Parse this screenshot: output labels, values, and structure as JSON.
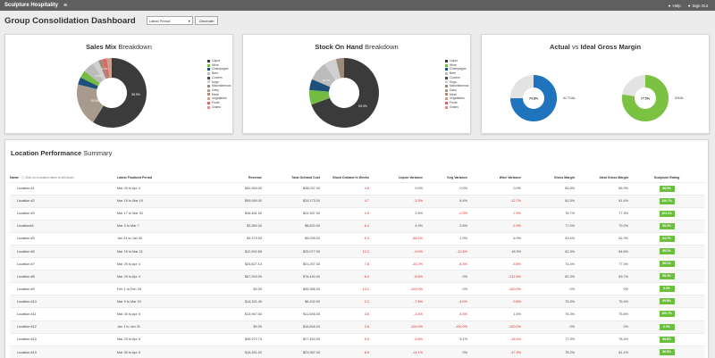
{
  "app": {
    "title": "Sculpture Hospitality",
    "help": "Help",
    "signout": "Sign Out"
  },
  "page": {
    "title": "Group Consolidation Dashboard",
    "period_select": "Latest Period",
    "generate_label": "Generate"
  },
  "sales_mix": {
    "title_bold": "Sales Mix",
    "title_rest": " Breakdown",
    "legend": [
      "Liquor",
      "Wine",
      "Champagne",
      "Beer",
      "Coolers",
      "Kegs",
      "Miscellaneous",
      "Dairy",
      "Meat",
      "Vegetables",
      "Fruits",
      "Grains"
    ],
    "colors": [
      "#3b3b3b",
      "#74bd42",
      "#1d4f7a",
      "#bcbcbc",
      "#4a4a4a",
      "#d0d0d0",
      "#9e8a78",
      "#a89a8c",
      "#b8877a",
      "#c9a18f",
      "#d96a6a",
      "#e38c8c"
    ],
    "label_main": "58.9%",
    "label_1": "19.9%",
    "label_2": "9.3%",
    "label_3": "4.2%"
  },
  "stock": {
    "title_bold": "Stock On Hand",
    "title_rest": " Breakdown",
    "legend": [
      "Liquor",
      "Wine",
      "Champagne",
      "Beer",
      "Coolers",
      "Kegs",
      "Miscellaneous",
      "Dairy",
      "Meat",
      "Vegetables",
      "Fruits",
      "Grains"
    ],
    "colors": [
      "#3b3b3b",
      "#74bd42",
      "#1d4f7a",
      "#bcbcbc",
      "#4a4a4a",
      "#d0d0d0",
      "#9e8a78",
      "#a89a8c",
      "#b8877a",
      "#c9a18f",
      "#d96a6a",
      "#e38c8c"
    ],
    "label_main": "69.4%",
    "label_1": "14.7%"
  },
  "margin": {
    "title_bold": "Actual",
    "title_mid": " vs ",
    "title_rest": "Ideal Gross Margin",
    "actual_value": "74.8%",
    "actual_label": "ACTUAL",
    "ideal_value": "77.5%",
    "ideal_label": "IDEAL",
    "actual_color": "#1f74bd",
    "ideal_color": "#7cc242"
  },
  "performance": {
    "title_bold": "Location Performance",
    "title_rest": " Summary",
    "hint": "Click on a location name to drill down",
    "headers": [
      "Name",
      "Latest Finalized Period",
      "Revenue",
      "Total Onhand Cost",
      "Stock Onhand In Weeks",
      "Liquor Variance",
      "Keg Variance",
      "Wine Variance",
      "Gross Margin",
      "Ideal Gross Margin",
      "Sculpture Rating"
    ],
    "rows": [
      {
        "name": "Location #1",
        "period": "Mar 29 to Apr 4",
        "revenue": "$40,353.00",
        "cost": "$38,037.00",
        "weeks": "4.6",
        "liquor": "0.0%",
        "keg": "0.0%",
        "wine": "0.0%",
        "gm": "84.8%",
        "igm": "85.3%",
        "rating": "98.0%"
      },
      {
        "name": "Location #2",
        "period": "Mar 15 to Mar 19",
        "revenue": "$59,069.00",
        "cost": "$26,173.00",
        "weeks": "4.7",
        "liquor": "-3.3%",
        "keg": "8.4%",
        "wine": "-12.7%",
        "gm": "81.5%",
        "igm": "81.4%",
        "rating": "100.7%"
      },
      {
        "name": "Location #3",
        "period": "Mar 17 to Mar 30",
        "revenue": "$46,481.00",
        "cost": "$24,357.00",
        "weeks": "4.9",
        "liquor": "2.5%",
        "keg": "-0.3%",
        "wine": "-7.9%",
        "gm": "78.7%",
        "igm": "77.3%",
        "rating": "104.1%"
      },
      {
        "name": "Location#4",
        "period": "Mar 3 to Mar 7",
        "revenue": "$3,360.00",
        "cost": "$8,820.00",
        "weeks": "6.4",
        "liquor": "4.9%",
        "keg": "2.6%",
        "wine": "-2.9%",
        "gm": "77.4%",
        "igm": "79.2%",
        "rating": "95.2%"
      },
      {
        "name": "Location #5",
        "period": "Jan 24 to Jan 30",
        "revenue": "$3,379.53",
        "cost": "$9,035.00",
        "weeks": "5.3",
        "liquor": "-58.1%",
        "keg": "1.9%",
        "wine": "6.9%",
        "gm": "53.4%",
        "igm": "82.3%",
        "rating": "64.7%"
      },
      {
        "name": "Location #6",
        "period": "Mar 15 to Mar 21",
        "revenue": "$12,992.89",
        "cost": "$25,977.00",
        "weeks": "12.2",
        "liquor": "-9.0%",
        "keg": "-12.6%",
        "wine": "18.3%",
        "gm": "82.9%",
        "igm": "84.8%",
        "rating": "98.1%"
      },
      {
        "name": "Location #7",
        "period": "Mar 29 to Apr 4",
        "revenue": "$25,827.13",
        "cost": "$51,257.00",
        "weeks": "7.8",
        "liquor": "-15.2%",
        "keg": "-8.4%",
        "wine": "-9.8%",
        "gm": "74.4%",
        "igm": "77.3%",
        "rating": "98.1%"
      },
      {
        "name": "Location #8",
        "period": "Mar 29 to Apr 4",
        "revenue": "$67,943.09",
        "cost": "$76,440.00",
        "weeks": "6.4",
        "liquor": "-8.6%",
        "keg": "0%",
        "wine": "-212.5%",
        "gm": "82.3%",
        "igm": "83.7%",
        "rating": "98.3%"
      },
      {
        "name": "Location #9",
        "period": "Feb 1 to Feb 28",
        "revenue": "$0.00",
        "cost": "$45,386.00",
        "weeks": "13.1",
        "liquor": "-100.0%",
        "keg": "0%",
        "wine": "-100.0%",
        "gm": "0%",
        "igm": "0%",
        "rating": "0.0%"
      },
      {
        "name": "Location #10",
        "period": "Mar 9 to Mar 15",
        "revenue": "$14,321.49",
        "cost": "$8,102.00",
        "weeks": "2.2",
        "liquor": "-7.6%",
        "keg": "-4.0%",
        "wine": "-9.8%",
        "gm": "75.3%",
        "igm": "75.4%",
        "rating": "99.8%"
      },
      {
        "name": "Location #11",
        "period": "Mar 30 to Apr 5",
        "revenue": "$13,967.84",
        "cost": "$11,546.00",
        "weeks": "3.6",
        "liquor": "-3.4%",
        "keg": "-4.5%",
        "wine": "1.5%",
        "gm": "76.3%",
        "igm": "75.8%",
        "rating": "100.7%"
      },
      {
        "name": "Location #12",
        "period": "Jan 1 to Jan 31",
        "revenue": "$0.00",
        "cost": "$18,846.00",
        "weeks": "2.8",
        "liquor": "-100.0%",
        "keg": "-100.0%",
        "wine": "-100.0%",
        "gm": "0%",
        "igm": "0%",
        "rating": "0.0%"
      },
      {
        "name": "Location #13",
        "period": "Mar 23 to Apr 5",
        "revenue": "$26,970.73",
        "cost": "$27,454.00",
        "weeks": "9.0",
        "liquor": "-5.6%",
        "keg": "5.1%",
        "wine": "-18.4%",
        "gm": "77.3%",
        "igm": "78.4%",
        "rating": "98.6%"
      },
      {
        "name": "Location #14",
        "period": "Mar 30 to Apr 5",
        "revenue": "$15,261.02",
        "cost": "$23,987.00",
        "weeks": "8.9",
        "liquor": "-14.1%",
        "keg": "0%",
        "wine": "-47.3%",
        "gm": "78.2%",
        "igm": "81.1%",
        "rating": "96.5%"
      }
    ]
  }
}
